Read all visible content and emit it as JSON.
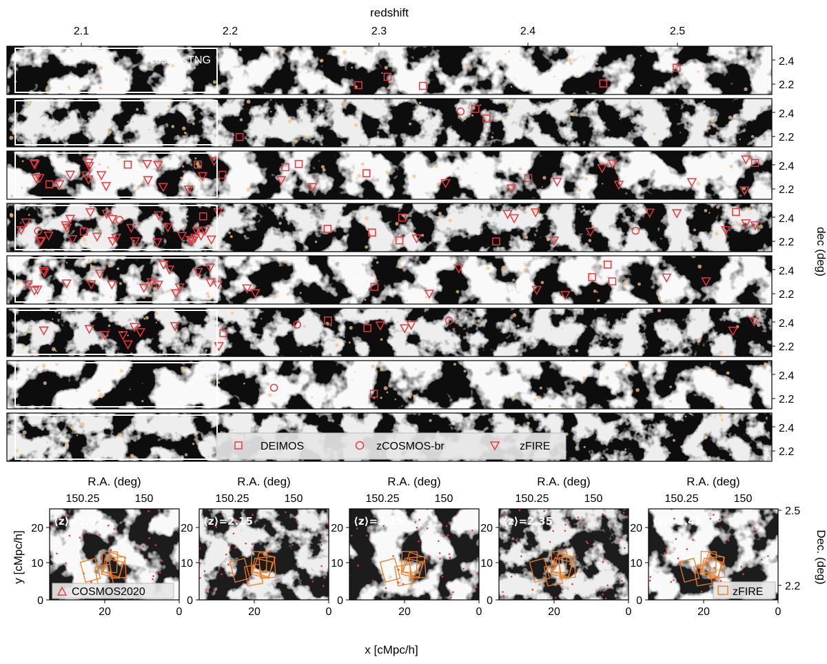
{
  "top": {
    "title_label": "redshift",
    "redshift_ticks": [
      "2.1",
      "2.2",
      "2.3",
      "2.4",
      "2.5"
    ],
    "dec_ticks": [
      "2.4",
      "2.2"
    ],
    "dec_axis_label": "dec (deg)",
    "inset_label": "cosmosTNG",
    "strip_count": 8,
    "legend": [
      {
        "label": "DEIMOS",
        "marker": "square"
      },
      {
        "label": "zCOSMOS-br",
        "marker": "circle"
      },
      {
        "label": "zFIRE",
        "marker": "triangle-down"
      }
    ]
  },
  "bottom": {
    "ra_axis_label": "R.A. (deg)",
    "ra_ticks": [
      "150.25",
      "150"
    ],
    "x_axis_label": "x [cMpc/h]",
    "x_ticks": [
      "20",
      "0"
    ],
    "y_axis_label": "y [cMpc/h]",
    "y_ticks": [
      "20",
      "10",
      "0"
    ],
    "dec_axis_label": "Dec. (deg)",
    "dec_ticks": [
      "2.5",
      "2.2"
    ],
    "panels": [
      {
        "z_label": "⟨z⟩=2.05"
      },
      {
        "z_label": "⟨z⟩=2.15"
      },
      {
        "z_label": "⟨z⟩=2.25"
      },
      {
        "z_label": "⟨z⟩=2.35"
      },
      {
        "z_label": "⟨z⟩=2.45"
      }
    ],
    "legend_cosmos": "COSMOS2020",
    "legend_zfire": "zFIRE"
  },
  "colors": {
    "background": "#0a0a0a",
    "filament": "#d9d9d9",
    "dense": "#f3c48a",
    "marker": "#e8383d",
    "zfire_box": "#f07d1e"
  }
}
